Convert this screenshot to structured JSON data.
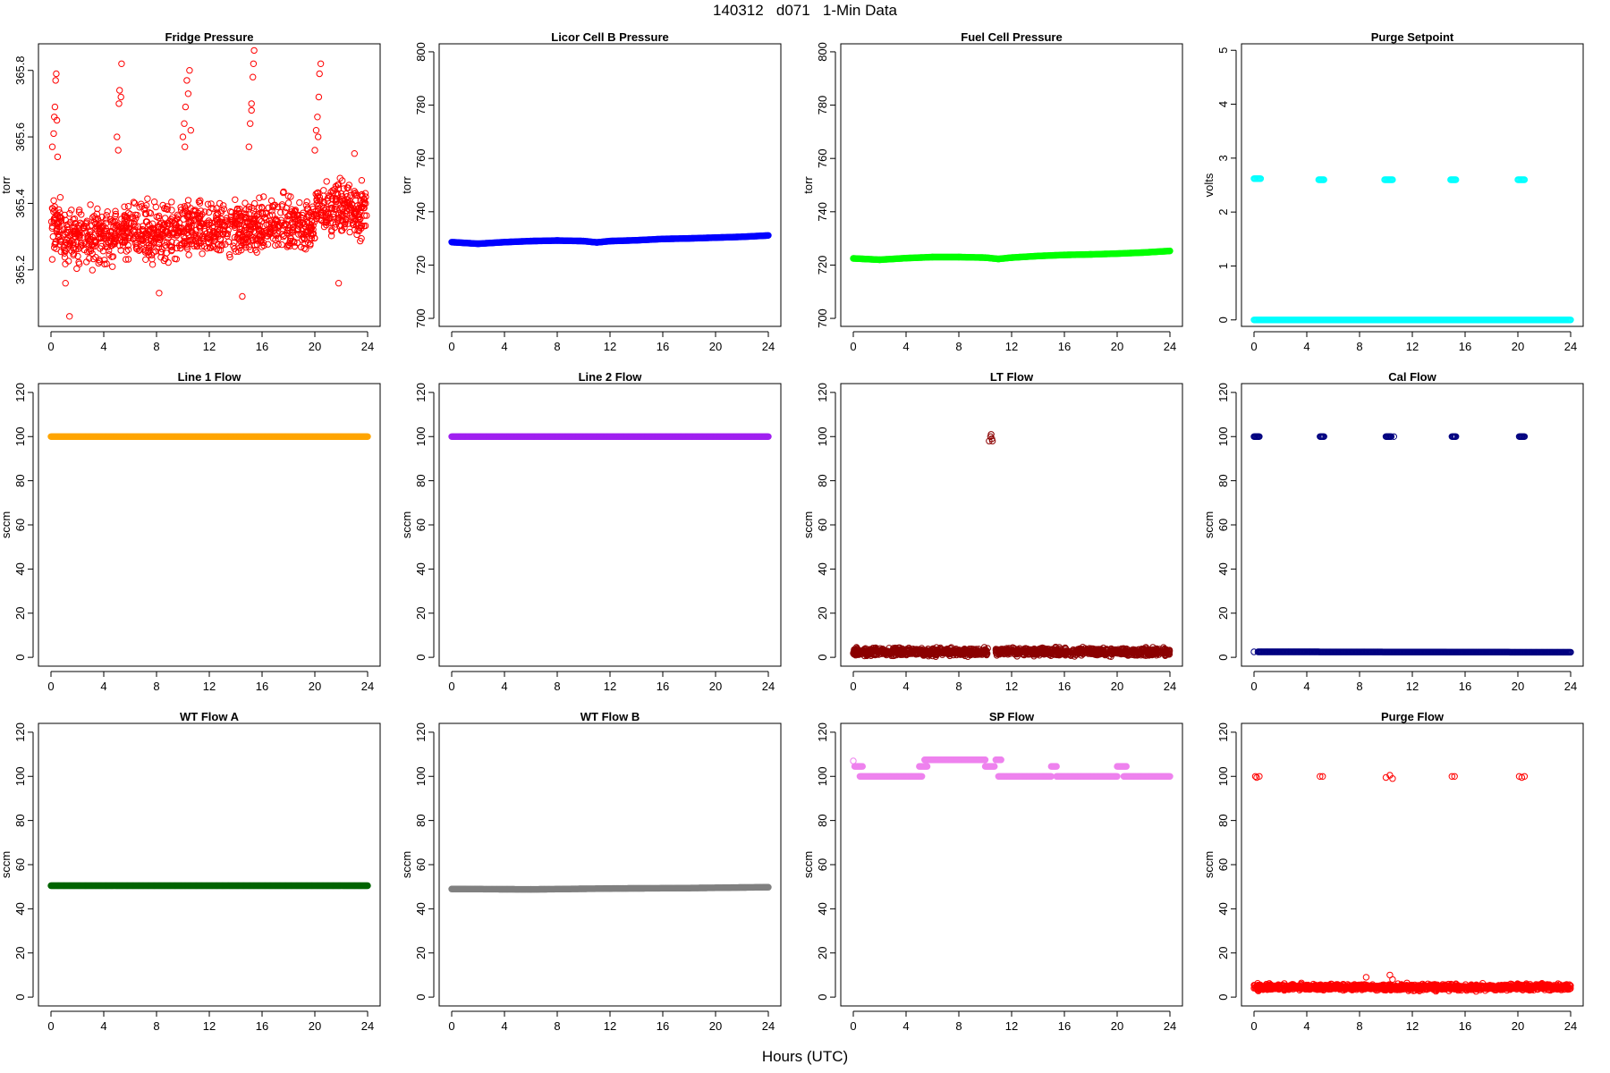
{
  "figure": {
    "title": "140312   d071   1-Min Data",
    "xlabel": "Hours (UTC)"
  },
  "chart_data": [
    {
      "type": "scatter",
      "title": "Fridge Pressure",
      "xlabel": "",
      "ylabel": "torr",
      "xlim": [
        0,
        24
      ],
      "ylim": [
        365.03,
        365.88
      ],
      "xticks": [
        0,
        4,
        8,
        12,
        16,
        20,
        24
      ],
      "yticks": [
        365.2,
        365.4,
        365.6,
        365.8
      ],
      "ytick_labels": [
        "365.2",
        "365.4",
        "365.6",
        "365.8"
      ],
      "color": "#ff0000",
      "filled": false,
      "generator": "noisy",
      "series": [
        {
          "segments": [
            {
              "x0": 0,
              "x1": 1,
              "lo": 365.2,
              "hi": 365.45
            },
            {
              "x0": 1,
              "x1": 5,
              "lo": 365.18,
              "hi": 365.42
            },
            {
              "x0": 5,
              "x1": 10,
              "lo": 365.2,
              "hi": 365.43
            },
            {
              "x0": 10,
              "x1": 15,
              "lo": 365.2,
              "hi": 365.44
            },
            {
              "x0": 15,
              "x1": 20,
              "lo": 365.22,
              "hi": 365.45
            },
            {
              "x0": 20,
              "x1": 24,
              "lo": 365.26,
              "hi": 365.5
            }
          ],
          "points": [
            [
              0.1,
              365.57
            ],
            [
              0.2,
              365.61
            ],
            [
              0.25,
              365.66
            ],
            [
              0.3,
              365.69
            ],
            [
              0.35,
              365.77
            ],
            [
              0.4,
              365.79
            ],
            [
              0.45,
              365.65
            ],
            [
              0.5,
              365.54
            ],
            [
              1.1,
              365.16
            ],
            [
              1.4,
              365.06
            ],
            [
              5.0,
              365.6
            ],
            [
              5.1,
              365.56
            ],
            [
              5.15,
              365.7
            ],
            [
              5.2,
              365.74
            ],
            [
              5.3,
              365.72
            ],
            [
              5.35,
              365.82
            ],
            [
              10.0,
              365.6
            ],
            [
              10.1,
              365.64
            ],
            [
              10.2,
              365.69
            ],
            [
              10.3,
              365.77
            ],
            [
              10.4,
              365.73
            ],
            [
              10.5,
              365.8
            ],
            [
              10.6,
              365.62
            ],
            [
              10.15,
              365.57
            ],
            [
              15.0,
              365.57
            ],
            [
              15.1,
              365.64
            ],
            [
              15.2,
              365.7
            ],
            [
              15.3,
              365.78
            ],
            [
              15.35,
              365.82
            ],
            [
              15.4,
              365.86
            ],
            [
              15.2,
              365.68
            ],
            [
              20.0,
              365.56
            ],
            [
              20.1,
              365.62
            ],
            [
              20.2,
              365.66
            ],
            [
              20.3,
              365.72
            ],
            [
              20.35,
              365.79
            ],
            [
              20.45,
              365.82
            ],
            [
              20.25,
              365.6
            ],
            [
              14.5,
              365.12
            ],
            [
              8.2,
              365.13
            ],
            [
              21.8,
              365.16
            ],
            [
              23.0,
              365.55
            ]
          ]
        }
      ]
    },
    {
      "type": "scatter",
      "title": "Licor Cell B Pressure",
      "xlabel": "",
      "ylabel": "torr",
      "xlim": [
        0,
        24
      ],
      "ylim": [
        697,
        803
      ],
      "xticks": [
        0,
        4,
        8,
        12,
        16,
        20,
        24
      ],
      "yticks": [
        700,
        720,
        740,
        760,
        780,
        800
      ],
      "ytick_labels": [
        "700",
        "720",
        "740",
        "760",
        "780",
        "800"
      ],
      "color": "#0000ff",
      "filled": true,
      "generator": "line",
      "series": [
        {
          "x": [
            0,
            2,
            4,
            6,
            8,
            10,
            11,
            12,
            14,
            16,
            18,
            20,
            22,
            24
          ],
          "y": [
            728.6,
            728.0,
            728.6,
            729.0,
            729.2,
            729.0,
            728.5,
            729.0,
            729.3,
            729.8,
            730.0,
            730.3,
            730.6,
            731.1
          ]
        }
      ]
    },
    {
      "type": "scatter",
      "title": "Fuel Cell Pressure",
      "xlabel": "",
      "ylabel": "torr",
      "xlim": [
        0,
        24
      ],
      "ylim": [
        697,
        803
      ],
      "xticks": [
        0,
        4,
        8,
        12,
        16,
        20,
        24
      ],
      "yticks": [
        700,
        720,
        740,
        760,
        780,
        800
      ],
      "ytick_labels": [
        "700",
        "720",
        "740",
        "760",
        "780",
        "800"
      ],
      "color": "#00ff00",
      "filled": true,
      "generator": "line",
      "series": [
        {
          "x": [
            0,
            2,
            4,
            6,
            8,
            10,
            11,
            12,
            14,
            16,
            18,
            20,
            22,
            24
          ],
          "y": [
            722.5,
            722.0,
            722.6,
            723.0,
            723.0,
            722.8,
            722.3,
            722.8,
            723.4,
            723.8,
            724.0,
            724.3,
            724.7,
            725.3
          ]
        }
      ]
    },
    {
      "type": "scatter",
      "title": "Purge Setpoint",
      "xlabel": "",
      "ylabel": "volts",
      "xlim": [
        0,
        24
      ],
      "ylim": [
        -0.12,
        5.12
      ],
      "xticks": [
        0,
        4,
        8,
        12,
        16,
        20,
        24
      ],
      "yticks": [
        0,
        1,
        2,
        3,
        4,
        5
      ],
      "ytick_labels": [
        "0",
        "1",
        "2",
        "3",
        "4",
        "5"
      ],
      "color": "#00ffff",
      "filled": false,
      "generator": "line",
      "series": [
        {
          "x": [
            0,
            24
          ],
          "y": [
            0,
            0
          ]
        },
        {
          "x": [
            0,
            0.5
          ],
          "y": [
            2.62,
            2.62
          ]
        },
        {
          "x": [
            4.9,
            5.3
          ],
          "y": [
            2.6,
            2.6
          ]
        },
        {
          "x": [
            9.9,
            10.5
          ],
          "y": [
            2.6,
            2.6
          ]
        },
        {
          "x": [
            14.9,
            15.3
          ],
          "y": [
            2.6,
            2.6
          ]
        },
        {
          "x": [
            20.0,
            20.5
          ],
          "y": [
            2.6,
            2.6
          ]
        }
      ]
    },
    {
      "type": "scatter",
      "title": "Line 1 Flow",
      "xlabel": "",
      "ylabel": "sccm",
      "xlim": [
        0,
        24
      ],
      "ylim": [
        -4,
        124
      ],
      "xticks": [
        0,
        4,
        8,
        12,
        16,
        20,
        24
      ],
      "yticks": [
        0,
        20,
        40,
        60,
        80,
        100,
        120
      ],
      "ytick_labels": [
        "0",
        "20",
        "40",
        "60",
        "80",
        "100",
        "120"
      ],
      "color": "#ffa500",
      "filled": true,
      "generator": "line",
      "series": [
        {
          "x": [
            0,
            24
          ],
          "y": [
            100,
            100
          ]
        }
      ]
    },
    {
      "type": "scatter",
      "title": "Line 2 Flow",
      "xlabel": "",
      "ylabel": "sccm",
      "xlim": [
        0,
        24
      ],
      "ylim": [
        -4,
        124
      ],
      "xticks": [
        0,
        4,
        8,
        12,
        16,
        20,
        24
      ],
      "yticks": [
        0,
        20,
        40,
        60,
        80,
        100,
        120
      ],
      "ytick_labels": [
        "0",
        "20",
        "40",
        "60",
        "80",
        "100",
        "120"
      ],
      "color": "#a020f0",
      "filled": true,
      "generator": "line",
      "series": [
        {
          "x": [
            0,
            24
          ],
          "y": [
            100,
            100
          ]
        }
      ]
    },
    {
      "type": "scatter",
      "title": "LT Flow",
      "xlabel": "",
      "ylabel": "sccm",
      "xlim": [
        0,
        24
      ],
      "ylim": [
        -4,
        124
      ],
      "xticks": [
        0,
        4,
        8,
        12,
        16,
        20,
        24
      ],
      "yticks": [
        0,
        20,
        40,
        60,
        80,
        100,
        120
      ],
      "ytick_labels": [
        "0",
        "20",
        "40",
        "60",
        "80",
        "100",
        "120"
      ],
      "color": "#8b0000",
      "filled": false,
      "generator": "noisy",
      "series": [
        {
          "segments": [
            {
              "x0": 0,
              "x1": 10.2,
              "lo": 0,
              "hi": 5
            },
            {
              "x0": 10.8,
              "x1": 24,
              "lo": 0,
              "hi": 5
            }
          ],
          "points": [
            [
              10.3,
              98
            ],
            [
              10.4,
              100
            ],
            [
              10.45,
              101
            ],
            [
              10.5,
              99
            ],
            [
              10.55,
              98
            ]
          ]
        }
      ]
    },
    {
      "type": "scatter",
      "title": "Cal Flow",
      "xlabel": "",
      "ylabel": "sccm",
      "xlim": [
        0,
        24
      ],
      "ylim": [
        -4,
        124
      ],
      "xticks": [
        0,
        4,
        8,
        12,
        16,
        20,
        24
      ],
      "yticks": [
        0,
        20,
        40,
        60,
        80,
        100,
        120
      ],
      "ytick_labels": [
        "0",
        "20",
        "40",
        "60",
        "80",
        "100",
        "120"
      ],
      "color": "#000080",
      "filled": false,
      "generator": "line",
      "series": [
        {
          "x": [
            0.3,
            24
          ],
          "y": [
            2.5,
            2.3
          ]
        },
        {
          "x": [
            0,
            0.4
          ],
          "y": [
            100,
            100
          ]
        },
        {
          "x": [
            5.0,
            5.3
          ],
          "y": [
            100,
            100
          ]
        },
        {
          "x": [
            10.0,
            10.4
          ],
          "y": [
            100,
            100
          ]
        },
        {
          "x": [
            15.0,
            15.3
          ],
          "y": [
            100,
            100
          ]
        },
        {
          "x": [
            20.1,
            20.5
          ],
          "y": [
            100,
            100
          ]
        }
      ],
      "points": [
        [
          0,
          2.5
        ],
        [
          10.6,
          100
        ]
      ]
    },
    {
      "type": "scatter",
      "title": "WT Flow A",
      "xlabel": "",
      "ylabel": "sccm",
      "xlim": [
        0,
        24
      ],
      "ylim": [
        -4,
        124
      ],
      "xticks": [
        0,
        4,
        8,
        12,
        16,
        20,
        24
      ],
      "yticks": [
        0,
        20,
        40,
        60,
        80,
        100,
        120
      ],
      "ytick_labels": [
        "0",
        "20",
        "40",
        "60",
        "80",
        "100",
        "120"
      ],
      "color": "#006400",
      "filled": true,
      "generator": "line",
      "series": [
        {
          "x": [
            0,
            24
          ],
          "y": [
            50.5,
            50.5
          ]
        }
      ]
    },
    {
      "type": "scatter",
      "title": "WT Flow B",
      "xlabel": "",
      "ylabel": "sccm",
      "xlim": [
        0,
        24
      ],
      "ylim": [
        -4,
        124
      ],
      "xticks": [
        0,
        4,
        8,
        12,
        16,
        20,
        24
      ],
      "yticks": [
        0,
        20,
        40,
        60,
        80,
        100,
        120
      ],
      "ytick_labels": [
        "0",
        "20",
        "40",
        "60",
        "80",
        "100",
        "120"
      ],
      "color": "#808080",
      "filled": true,
      "generator": "line",
      "series": [
        {
          "x": [
            0,
            6,
            12,
            18,
            24
          ],
          "y": [
            49,
            48.8,
            49.2,
            49.4,
            49.8
          ]
        }
      ]
    },
    {
      "type": "scatter",
      "title": "SP Flow",
      "xlabel": "",
      "ylabel": "sccm",
      "xlim": [
        0,
        24
      ],
      "ylim": [
        -4,
        124
      ],
      "xticks": [
        0,
        4,
        8,
        12,
        16,
        20,
        24
      ],
      "yticks": [
        0,
        20,
        40,
        60,
        80,
        100,
        120
      ],
      "ytick_labels": [
        "0",
        "20",
        "40",
        "60",
        "80",
        "100",
        "120"
      ],
      "color": "#ee82ee",
      "filled": true,
      "generator": "line",
      "series": [
        {
          "x": [
            0.1,
            0.7
          ],
          "y": [
            104.5,
            104.5
          ]
        },
        {
          "x": [
            0.5,
            5.2
          ],
          "y": [
            100,
            100
          ]
        },
        {
          "x": [
            5.0,
            5.6
          ],
          "y": [
            104.5,
            104.5
          ]
        },
        {
          "x": [
            5.4,
            10.0
          ],
          "y": [
            107.5,
            107.5
          ]
        },
        {
          "x": [
            10.0,
            10.7
          ],
          "y": [
            104.5,
            104.5
          ]
        },
        {
          "x": [
            10.8,
            11.2
          ],
          "y": [
            107.5,
            107.5
          ]
        },
        {
          "x": [
            11.0,
            15.0
          ],
          "y": [
            100,
            100
          ]
        },
        {
          "x": [
            15.0,
            15.4
          ],
          "y": [
            104.5,
            104.5
          ]
        },
        {
          "x": [
            15.4,
            20.0
          ],
          "y": [
            100,
            100
          ]
        },
        {
          "x": [
            20.0,
            20.7
          ],
          "y": [
            104.5,
            104.5
          ]
        },
        {
          "x": [
            20.5,
            24
          ],
          "y": [
            100,
            100
          ]
        }
      ],
      "points": [
        [
          0,
          107
        ]
      ]
    },
    {
      "type": "scatter",
      "title": "Purge Flow",
      "xlabel": "",
      "ylabel": "sccm",
      "xlim": [
        0,
        24
      ],
      "ylim": [
        -4,
        124
      ],
      "xticks": [
        0,
        4,
        8,
        12,
        16,
        20,
        24
      ],
      "yticks": [
        0,
        20,
        40,
        60,
        80,
        100,
        120
      ],
      "ytick_labels": [
        "0",
        "20",
        "40",
        "60",
        "80",
        "100",
        "120"
      ],
      "color": "#ff0000",
      "filled": false,
      "generator": "noisy",
      "series": [
        {
          "segments": [
            {
              "x0": 0,
              "x1": 24,
              "lo": 2.5,
              "hi": 6.5
            }
          ],
          "points": [
            [
              0.1,
              100
            ],
            [
              0.2,
              99.5
            ],
            [
              0.4,
              100
            ],
            [
              5.0,
              100
            ],
            [
              5.2,
              100
            ],
            [
              10.0,
              99.5
            ],
            [
              10.3,
              100.5
            ],
            [
              10.5,
              99
            ],
            [
              15.0,
              100
            ],
            [
              15.2,
              100
            ],
            [
              20.1,
              100
            ],
            [
              20.3,
              99.5
            ],
            [
              20.5,
              100
            ],
            [
              8.5,
              9
            ],
            [
              10.3,
              10
            ],
            [
              10.5,
              8
            ]
          ]
        }
      ]
    }
  ]
}
